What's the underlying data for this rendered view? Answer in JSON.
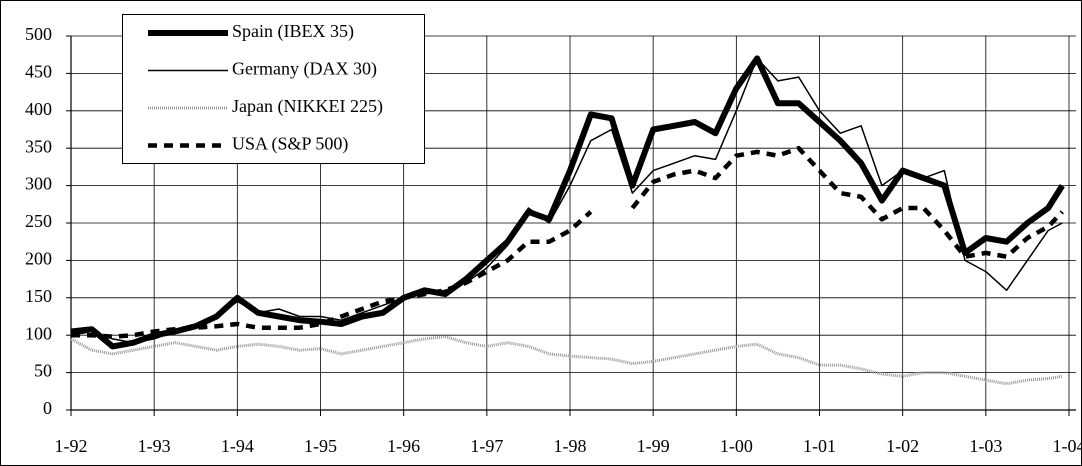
{
  "chart_data": {
    "type": "line",
    "x": [
      1992,
      1992.25,
      1992.5,
      1992.75,
      1993,
      1993.25,
      1993.5,
      1993.75,
      1994,
      1994.25,
      1994.5,
      1994.75,
      1995,
      1995.25,
      1995.5,
      1995.75,
      1996,
      1996.25,
      1996.5,
      1996.75,
      1997,
      1997.25,
      1997.5,
      1997.75,
      1998,
      1998.25,
      1998.5,
      1998.75,
      1999,
      1999.25,
      1999.5,
      1999.75,
      2000,
      2000.25,
      2000.5,
      2000.75,
      2001,
      2001.25,
      2001.5,
      2001.75,
      2002,
      2002.25,
      2002.5,
      2002.75,
      2003,
      2003.25,
      2003.5,
      2003.75,
      2003.92
    ],
    "series": [
      {
        "name": "Spain (IBEX 35)",
        "color": "#000000",
        "width": 6,
        "dash": "none",
        "values": [
          105,
          108,
          85,
          90,
          100,
          105,
          112,
          125,
          150,
          130,
          125,
          120,
          118,
          115,
          125,
          130,
          150,
          160,
          155,
          175,
          200,
          225,
          265,
          255,
          320,
          395,
          390,
          300,
          375,
          380,
          385,
          370,
          430,
          470,
          410,
          410,
          385,
          360,
          330,
          280,
          320,
          310,
          300,
          210,
          230,
          225,
          250,
          270,
          300
        ]
      },
      {
        "name": "Germany (DAX 30)",
        "color": "#000000",
        "width": 1.5,
        "dash": "none",
        "values": [
          100,
          105,
          95,
          90,
          95,
          105,
          115,
          125,
          145,
          130,
          135,
          125,
          125,
          120,
          130,
          140,
          150,
          155,
          160,
          170,
          190,
          220,
          270,
          250,
          300,
          360,
          375,
          290,
          320,
          330,
          340,
          335,
          400,
          470,
          440,
          445,
          400,
          370,
          380,
          300,
          320,
          310,
          320,
          200,
          185,
          160,
          200,
          240,
          250
        ]
      },
      {
        "name": "Japan (NIKKEI 225)",
        "color": "#999999",
        "width": 3,
        "dash": "1 1",
        "values": [
          95,
          80,
          75,
          80,
          85,
          90,
          85,
          80,
          85,
          88,
          85,
          80,
          82,
          75,
          80,
          85,
          90,
          95,
          98,
          90,
          85,
          90,
          85,
          75,
          72,
          70,
          68,
          62,
          65,
          70,
          75,
          80,
          85,
          88,
          75,
          70,
          60,
          60,
          55,
          48,
          45,
          50,
          50,
          45,
          40,
          35,
          40,
          42,
          45
        ]
      },
      {
        "name": "USA (S&P 500)",
        "color": "#000000",
        "width": 4.5,
        "dash": "9 7",
        "values": [
          100,
          100,
          98,
          100,
          105,
          108,
          110,
          112,
          115,
          110,
          110,
          110,
          115,
          125,
          135,
          145,
          150,
          155,
          160,
          170,
          185,
          200,
          225,
          225,
          240,
          265,
          null,
          270,
          305,
          315,
          320,
          310,
          340,
          345,
          340,
          350,
          320,
          290,
          285,
          255,
          270,
          270,
          240,
          205,
          210,
          205,
          230,
          245,
          265
        ]
      }
    ],
    "xlim": [
      1992,
      2004
    ],
    "xticks": [
      {
        "value": 1992,
        "label": "1-92"
      },
      {
        "value": 1993,
        "label": "1-93"
      },
      {
        "value": 1994,
        "label": "1-94"
      },
      {
        "value": 1995,
        "label": "1-95"
      },
      {
        "value": 1996,
        "label": "1-96"
      },
      {
        "value": 1997,
        "label": "1-97"
      },
      {
        "value": 1998,
        "label": "1-98"
      },
      {
        "value": 1999,
        "label": "1-99"
      },
      {
        "value": 2000,
        "label": "1-00"
      },
      {
        "value": 2001,
        "label": "1-01"
      },
      {
        "value": 2002,
        "label": "1-02"
      },
      {
        "value": 2003,
        "label": "1-03"
      },
      {
        "value": 2004,
        "label": "1-04"
      }
    ],
    "ylim": [
      0,
      500
    ],
    "yticks": [
      0,
      50,
      100,
      150,
      200,
      250,
      300,
      350,
      400,
      450,
      500
    ],
    "grid": true,
    "legend": "upper left"
  }
}
